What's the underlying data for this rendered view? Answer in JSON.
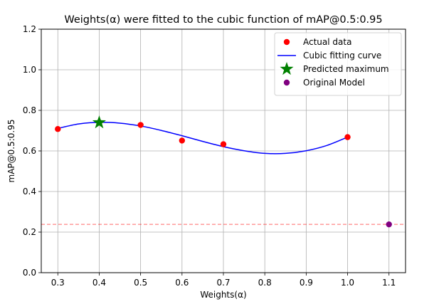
{
  "chart_data": {
    "type": "scatter",
    "title": "Weights(α) were fitted to the cubic function of mAP@0.5:0.95",
    "xlabel": "Weights(α)",
    "ylabel": "mAP@0.5:0.95",
    "xlim": [
      0.26,
      1.14
    ],
    "ylim": [
      0.0,
      1.2
    ],
    "xticks": [
      0.3,
      0.4,
      0.5,
      0.6,
      0.7,
      0.8,
      0.9,
      1.0,
      1.1
    ],
    "xtick_labels": [
      "0.3",
      "0.4",
      "0.5",
      "0.6",
      "0.7",
      "0.8",
      "0.9",
      "1.0",
      "1.1"
    ],
    "yticks": [
      0.0,
      0.2,
      0.4,
      0.6,
      0.8,
      1.0,
      1.2
    ],
    "ytick_labels": [
      "0.0",
      "0.2",
      "0.4",
      "0.6",
      "0.8",
      "1.0",
      "1.2"
    ],
    "grid": true,
    "legend_position": "top-right",
    "series": [
      {
        "name": "Actual data",
        "kind": "scatter",
        "color": "#ff0000",
        "x": [
          0.3,
          0.4,
          0.5,
          0.6,
          0.7,
          1.0
        ],
        "y": [
          0.708,
          0.74,
          0.728,
          0.651,
          0.633,
          0.668
        ]
      },
      {
        "name": "Cubic fitting curve",
        "kind": "line",
        "color": "#0000ff",
        "x": [
          0.3,
          0.35,
          0.4,
          0.45,
          0.5,
          0.55,
          0.6,
          0.65,
          0.7,
          0.75,
          0.8,
          0.85,
          0.9,
          0.95,
          1.0
        ],
        "y": [
          0.711,
          0.733,
          0.741,
          0.737,
          0.723,
          0.701,
          0.675,
          0.647,
          0.621,
          0.601,
          0.588,
          0.588,
          0.601,
          0.627,
          0.668
        ]
      },
      {
        "name": "Predicted maximum",
        "kind": "marker",
        "marker": "star",
        "color": "#008000",
        "x": [
          0.4
        ],
        "y": [
          0.74
        ]
      },
      {
        "name": "Original Model",
        "kind": "scatter",
        "color": "#800080",
        "x": [
          1.1
        ],
        "y": [
          0.238
        ]
      }
    ],
    "reference_lines": [
      {
        "orientation": "horizontal",
        "y": 0.238,
        "color": "#ff0000",
        "style": "dashed"
      }
    ]
  }
}
